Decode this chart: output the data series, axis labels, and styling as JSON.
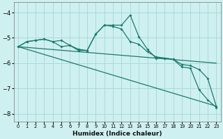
{
  "xlabel": "Humidex (Indice chaleur)",
  "bg_color": "#cff0f0",
  "line_color": "#1a7a6e",
  "grid_color": "#aadada",
  "xlim": [
    -0.5,
    23.5
  ],
  "ylim": [
    -8.3,
    -3.6
  ],
  "yticks": [
    -8,
    -7,
    -6,
    -5,
    -4
  ],
  "xticks": [
    0,
    1,
    2,
    3,
    4,
    5,
    6,
    7,
    8,
    9,
    10,
    11,
    12,
    13,
    14,
    15,
    16,
    17,
    18,
    19,
    20,
    21,
    22,
    23
  ],
  "series1_x": [
    0,
    1,
    2,
    3,
    4,
    5,
    6,
    7,
    8,
    9,
    10,
    11,
    12,
    13,
    14,
    15,
    16,
    17,
    18,
    19,
    20,
    21,
    22,
    23
  ],
  "series1_y": [
    -5.35,
    -5.15,
    -5.1,
    -5.05,
    -5.15,
    -5.1,
    -5.3,
    -5.45,
    -5.5,
    -4.85,
    -4.5,
    -4.5,
    -4.5,
    -4.1,
    -4.95,
    -5.45,
    -5.8,
    -5.8,
    -5.85,
    -6.15,
    -6.2,
    -7.05,
    -7.45,
    -7.75
  ],
  "series2_x": [
    0,
    1,
    2,
    3,
    4,
    5,
    6,
    7,
    8,
    9,
    10,
    11,
    12,
    13,
    14,
    15,
    16,
    17,
    18,
    19,
    20,
    21,
    22,
    23
  ],
  "series2_y": [
    -5.35,
    -5.15,
    -5.1,
    -5.05,
    -5.15,
    -5.35,
    -5.3,
    -5.5,
    -5.5,
    -4.85,
    -4.5,
    -4.55,
    -4.65,
    -5.15,
    -5.25,
    -5.55,
    -5.75,
    -5.8,
    -5.85,
    -6.05,
    -6.1,
    -6.25,
    -6.6,
    -7.7
  ],
  "series3_x": [
    0,
    23
  ],
  "series3_y": [
    -5.35,
    -6.0
  ],
  "series4_x": [
    0,
    23
  ],
  "series4_y": [
    -5.35,
    -7.7
  ]
}
